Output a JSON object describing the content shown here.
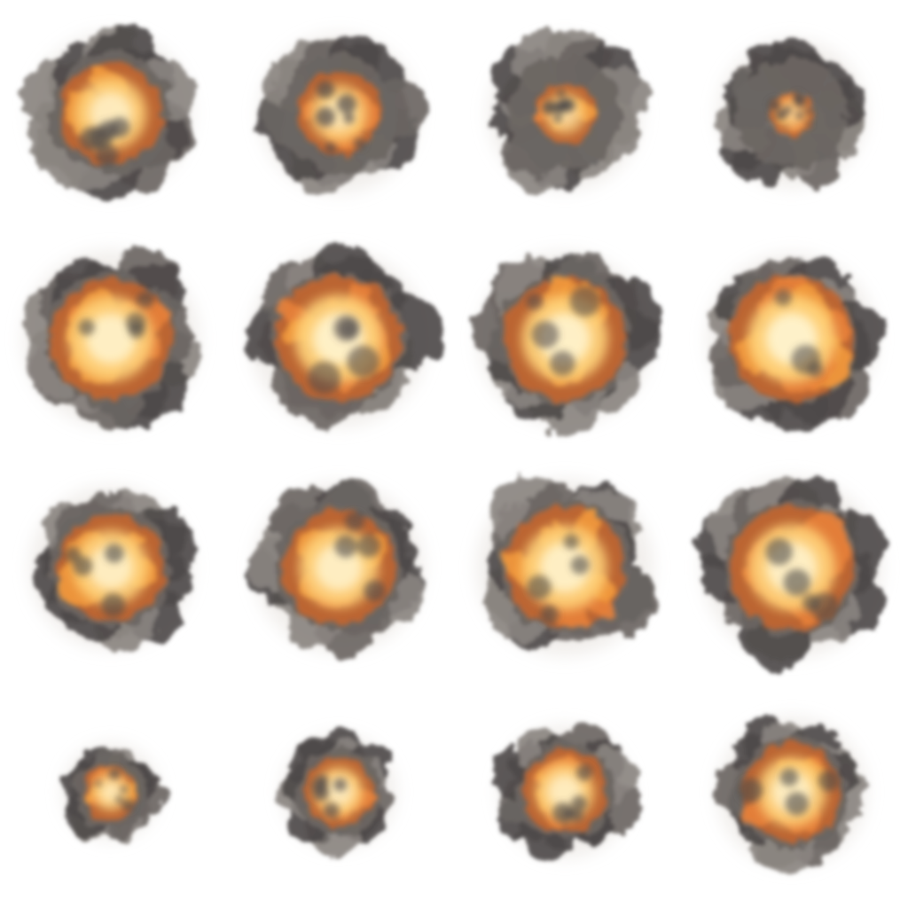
{
  "sprite_sheet": {
    "columns": 4,
    "rows": 4,
    "frame_count": 16,
    "background_color": "#ffffff",
    "colors": {
      "hot_core": "#fff7d6",
      "fire_bright": "#ffd37a",
      "fire_mid": "#f29a3c",
      "fire_dark": "#c9652a",
      "ember": "#e8823a",
      "smoke_dark": "#4e4a49",
      "smoke_mid": "#6b6663",
      "smoke_light": "#8a8480",
      "haze": "#ece8e4"
    },
    "frames": [
      {
        "row": 1,
        "col": 1,
        "fire_level": 0.75,
        "scale": 0.92
      },
      {
        "row": 1,
        "col": 2,
        "fire_level": 0.55,
        "scale": 0.9
      },
      {
        "row": 1,
        "col": 3,
        "fire_level": 0.3,
        "scale": 0.87
      },
      {
        "row": 1,
        "col": 4,
        "fire_level": 0.12,
        "scale": 0.84
      },
      {
        "row": 2,
        "col": 1,
        "fire_level": 0.85,
        "scale": 1.0
      },
      {
        "row": 2,
        "col": 2,
        "fire_level": 0.9,
        "scale": 1.0
      },
      {
        "row": 2,
        "col": 3,
        "fire_level": 0.9,
        "scale": 0.98
      },
      {
        "row": 2,
        "col": 4,
        "fire_level": 0.95,
        "scale": 0.96
      },
      {
        "row": 3,
        "col": 1,
        "fire_level": 0.8,
        "scale": 0.92
      },
      {
        "row": 3,
        "col": 2,
        "fire_level": 0.82,
        "scale": 0.96
      },
      {
        "row": 3,
        "col": 3,
        "fire_level": 0.85,
        "scale": 1.0
      },
      {
        "row": 3,
        "col": 4,
        "fire_level": 0.85,
        "scale": 1.02
      },
      {
        "row": 4,
        "col": 1,
        "fire_level": 0.6,
        "scale": 0.55
      },
      {
        "row": 4,
        "col": 2,
        "fire_level": 0.7,
        "scale": 0.65
      },
      {
        "row": 4,
        "col": 3,
        "fire_level": 0.75,
        "scale": 0.75
      },
      {
        "row": 4,
        "col": 4,
        "fire_level": 0.8,
        "scale": 0.85
      }
    ]
  }
}
